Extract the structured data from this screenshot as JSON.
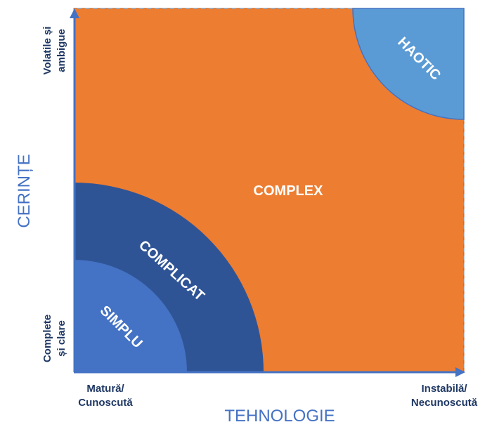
{
  "regions": {
    "simple": {
      "label": "SIMPLU",
      "color": "#4472c4"
    },
    "complicated": {
      "label": "COMPLICAT",
      "color": "#2f5496"
    },
    "complex": {
      "label": "COMPLEX",
      "color": "#ed7d31"
    },
    "chaotic": {
      "label": "HAOTIC",
      "color": "#5b9bd5"
    }
  },
  "y_axis": {
    "title": "CERINȚE",
    "low_line1": "Complete",
    "low_line2": "și clare",
    "high_line1": "Volatile și",
    "high_line2": "ambigue"
  },
  "x_axis": {
    "title": "TEHNOLOGIE",
    "low_line1": "Matură/",
    "low_line2": "Cunoscută",
    "high_line1": "Instabilă/",
    "high_line2": "Necunoscută"
  },
  "axis_color": "#4472c4"
}
